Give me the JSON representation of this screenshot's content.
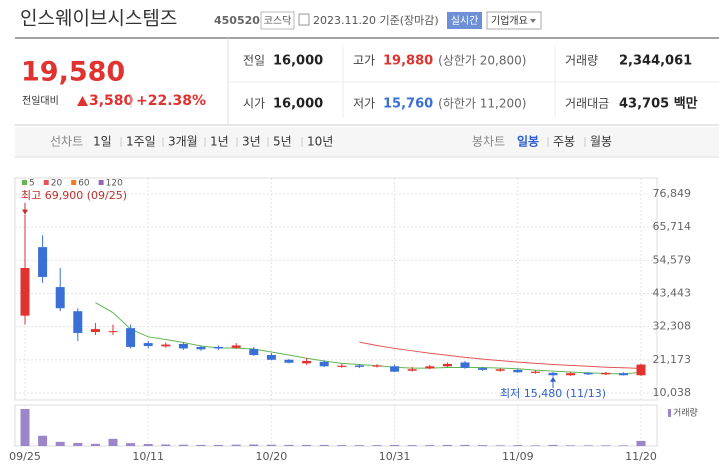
{
  "header": {
    "title": "인스웨이브시스템즈",
    "code": "450520",
    "market": "코스닥",
    "date": "2023.11.20 기준(장마감)",
    "realtime": "실시간",
    "overview": "기업개요"
  },
  "summary": {
    "price": "19,580",
    "change_label": "전일대비",
    "change": "3,580",
    "change_rate": "+22.38%",
    "items": [
      {
        "label": "전일",
        "value": "16,000"
      },
      {
        "label": "고가",
        "value": "19,880",
        "note": "(상한가 20,800)"
      },
      {
        "label": "거래량",
        "value": "2,344,061"
      },
      {
        "label": "시가",
        "value": "16,000"
      },
      {
        "label": "저가",
        "value": "15,760",
        "note": "(하한가 11,200)"
      },
      {
        "label": "거래대금",
        "value": "43,705 백만"
      }
    ]
  },
  "tabs": {
    "line_label": "선차트",
    "line": [
      "1일",
      "1주일",
      "3개월",
      "1년",
      "3년",
      "5년",
      "10년"
    ],
    "candle_label": "봉차트",
    "candle": [
      "일봉",
      "주봉",
      "월봉"
    ],
    "selected": "일봉"
  },
  "chart_data": {
    "type": "candlestick",
    "categories": [
      "09/25",
      null,
      null,
      null,
      null,
      null,
      null,
      "10/11",
      null,
      null,
      null,
      null,
      null,
      null,
      "10/20",
      null,
      null,
      null,
      null,
      null,
      null,
      "10/31",
      null,
      null,
      null,
      null,
      null,
      null,
      "11/09",
      null,
      null,
      null,
      null,
      null,
      null,
      "11/20"
    ],
    "open": [
      36000,
      59000,
      45600,
      37500,
      30500,
      30500,
      31800,
      26800,
      25700,
      26500,
      25500,
      25500,
      25200,
      24800,
      22800,
      21200,
      20000,
      20500,
      18800,
      19300,
      18900,
      19000,
      17500,
      18300,
      19000,
      20300,
      18400,
      17500,
      17800,
      16800,
      16800,
      16000,
      16800,
      16300,
      16700,
      16000
    ],
    "high": [
      69900,
      63000,
      52000,
      38500,
      33500,
      33000,
      33000,
      27500,
      27000,
      27000,
      26000,
      26000,
      26800,
      25500,
      23500,
      21500,
      21800,
      21000,
      19800,
      19600,
      19700,
      19600,
      18800,
      19500,
      20300,
      20800,
      18800,
      18400,
      18200,
      17600,
      17100,
      17000,
      17000,
      17100,
      17000,
      19880
    ],
    "low": [
      33000,
      47000,
      37500,
      27500,
      29500,
      29500,
      25000,
      25000,
      25200,
      24500,
      24200,
      24500,
      24800,
      22500,
      21000,
      20000,
      19500,
      18800,
      18500,
      18400,
      18600,
      17000,
      17300,
      18000,
      18700,
      18200,
      17500,
      17200,
      16800,
      16500,
      15480,
      15800,
      16100,
      16100,
      15900,
      15760
    ],
    "close": [
      52000,
      49000,
      38500,
      30200,
      31500,
      30800,
      25500,
      25800,
      26300,
      25000,
      24700,
      25000,
      26000,
      22800,
      21200,
      20200,
      20800,
      19000,
      19200,
      18800,
      19300,
      17200,
      18000,
      19000,
      19800,
      18500,
      17800,
      18000,
      17000,
      17200,
      16000,
      16700,
      16300,
      16800,
      16000,
      19580
    ],
    "up_color": "#e0322f",
    "down_color": "#3a6fd6",
    "series": [
      {
        "name": "5",
        "color": "#62b651",
        "values": [
          null,
          null,
          null,
          null,
          40400,
          37000,
          31500,
          28900,
          28000,
          27000,
          25800,
          25200,
          25100,
          24800,
          23800,
          22800,
          21700,
          20800,
          20000,
          19600,
          19200,
          18700,
          18400,
          18400,
          18600,
          18600,
          18600,
          18400,
          18200,
          17700,
          17400,
          17100,
          16800,
          16600,
          16400,
          17000
        ]
      },
      {
        "name": "20",
        "color": "#e25555",
        "values": [
          null,
          null,
          null,
          null,
          null,
          null,
          null,
          null,
          null,
          null,
          null,
          null,
          null,
          null,
          null,
          null,
          null,
          null,
          null,
          27100,
          26000,
          25000,
          24200,
          23400,
          22700,
          22000,
          21400,
          20900,
          20400,
          20000,
          19600,
          19300,
          19000,
          18700,
          18500,
          18300
        ]
      },
      {
        "name": "60",
        "color": "#f07f1a",
        "values": [
          null,
          null,
          null,
          null,
          null,
          null,
          null,
          null,
          null,
          null,
          null,
          null,
          null,
          null,
          null,
          null,
          null,
          null,
          null,
          null,
          null,
          null,
          null,
          null,
          null,
          null,
          null,
          null,
          null,
          null,
          null,
          null,
          null,
          null,
          null,
          null
        ]
      },
      {
        "name": "120",
        "color": "#9467bd",
        "values": [
          null,
          null,
          null,
          null,
          null,
          null,
          null,
          null,
          null,
          null,
          null,
          null,
          null,
          null,
          null,
          null,
          null,
          null,
          null,
          null,
          null,
          null,
          null,
          null,
          null,
          null,
          null,
          null,
          null,
          null,
          null,
          null,
          null,
          null,
          null,
          null
        ]
      }
    ],
    "volume": {
      "name": "거래량",
      "color": "#9a86c9",
      "values": [
        17000000,
        4700000,
        1900000,
        1400000,
        1000000,
        3300000,
        1300000,
        900000,
        700000,
        600000,
        500000,
        500000,
        600000,
        700000,
        600000,
        500000,
        500000,
        500000,
        400000,
        400000,
        400000,
        500000,
        400000,
        400000,
        500000,
        500000,
        400000,
        300000,
        400000,
        300000,
        500000,
        300000,
        300000,
        300000,
        300000,
        2344061
      ]
    },
    "ylim": [
      7690,
      82210
    ],
    "yticks": [
      {
        "value": 10038,
        "label": "10,038"
      },
      {
        "value": 21173,
        "label": "21,173"
      },
      {
        "value": 32308,
        "label": "32,308"
      },
      {
        "value": 43443,
        "label": "43,443"
      },
      {
        "value": 54579,
        "label": "54,579"
      },
      {
        "value": 65714,
        "label": "65,714"
      },
      {
        "value": 76849,
        "label": "76,849"
      }
    ],
    "annotations": [
      {
        "text": "최고 69,900 (09/25)"
      },
      {
        "text": "최저 15,480 (11/13)"
      }
    ],
    "grid": true
  }
}
